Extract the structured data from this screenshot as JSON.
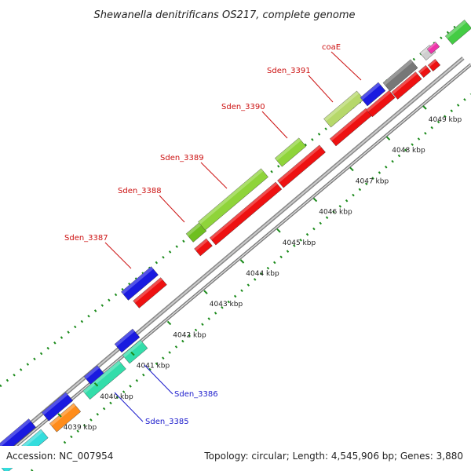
{
  "map": {
    "title": "Shewanella denitrificans OS217, complete genome",
    "accession": "Accession: NC_007954",
    "summary": "Topology: circular; Length: 4,545,906 bp; Genes: 3,880",
    "colors": {
      "forward_gene": "#1a1ae0",
      "reverse_gene": "#ee1111",
      "backbone": "#999999",
      "tick": "#1a8a1a",
      "label_forward": "#cc1111",
      "label_reverse": "#1a1acc"
    },
    "ticks": [
      {
        "label": "4039 kbp"
      },
      {
        "label": "4040 kbp"
      },
      {
        "label": "4041 kbp"
      },
      {
        "label": "4042 kbp"
      },
      {
        "label": "4043 kbp"
      },
      {
        "label": "4044 kbp"
      },
      {
        "label": "4045 kbp"
      },
      {
        "label": "4046 kbp"
      },
      {
        "label": "4047 kbp"
      },
      {
        "label": "4048 kbp"
      },
      {
        "label": "4049 kbp"
      }
    ],
    "gene_labels": [
      {
        "name": "coaE",
        "strand": "forward"
      },
      {
        "name": "Sden_3391",
        "strand": "forward"
      },
      {
        "name": "Sden_3390",
        "strand": "forward"
      },
      {
        "name": "Sden_3389",
        "strand": "forward"
      },
      {
        "name": "Sden_3388",
        "strand": "forward"
      },
      {
        "name": "Sden_3387",
        "strand": "forward"
      },
      {
        "name": "Sden_3386",
        "strand": "reverse"
      },
      {
        "name": "Sden_3385",
        "strand": "reverse"
      }
    ]
  }
}
